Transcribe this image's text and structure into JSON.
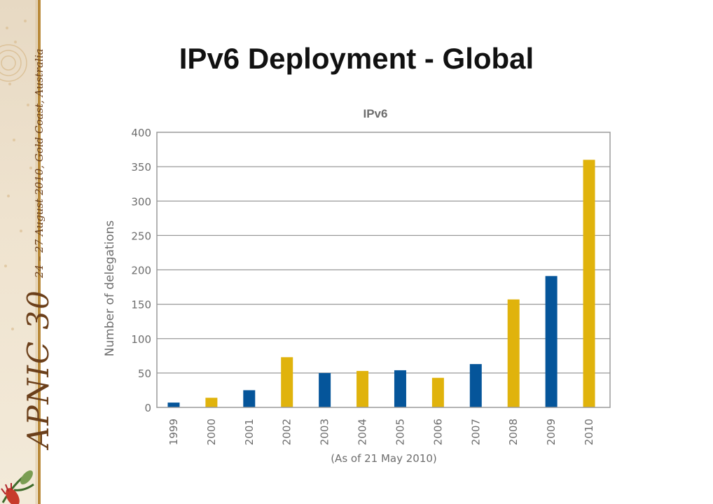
{
  "slide": {
    "title": "IPv6 Deployment  - Global"
  },
  "sidebar": {
    "event": "APNIC 30",
    "date": "24 – 27 August 2010, Gold Coast, Australia",
    "icon": "flower-decoration-icon"
  },
  "colors": {
    "blue": "#05559a",
    "gold": "#e0b30c",
    "axis_text": "#6d6d6d",
    "grid": "#9a9a9a"
  },
  "chart_data": {
    "type": "bar",
    "title": "IPv6",
    "ylabel": "Number of delegations",
    "xlabel": "(As of 21 May 2010)",
    "ylim": [
      0,
      400
    ],
    "yticks": [
      0,
      50,
      100,
      150,
      200,
      250,
      300,
      350,
      400
    ],
    "grid": true,
    "categories": [
      "1999",
      "2000",
      "2001",
      "2002",
      "2003",
      "2004",
      "2005",
      "2006",
      "2007",
      "2008",
      "2009",
      "2010"
    ],
    "values": [
      7,
      14,
      25,
      73,
      50,
      53,
      54,
      43,
      63,
      157,
      191,
      360
    ],
    "bar_colors": [
      "#05559a",
      "#e0b30c",
      "#05559a",
      "#e0b30c",
      "#05559a",
      "#e0b30c",
      "#05559a",
      "#e0b30c",
      "#05559a",
      "#e0b30c",
      "#05559a",
      "#e0b30c"
    ]
  }
}
